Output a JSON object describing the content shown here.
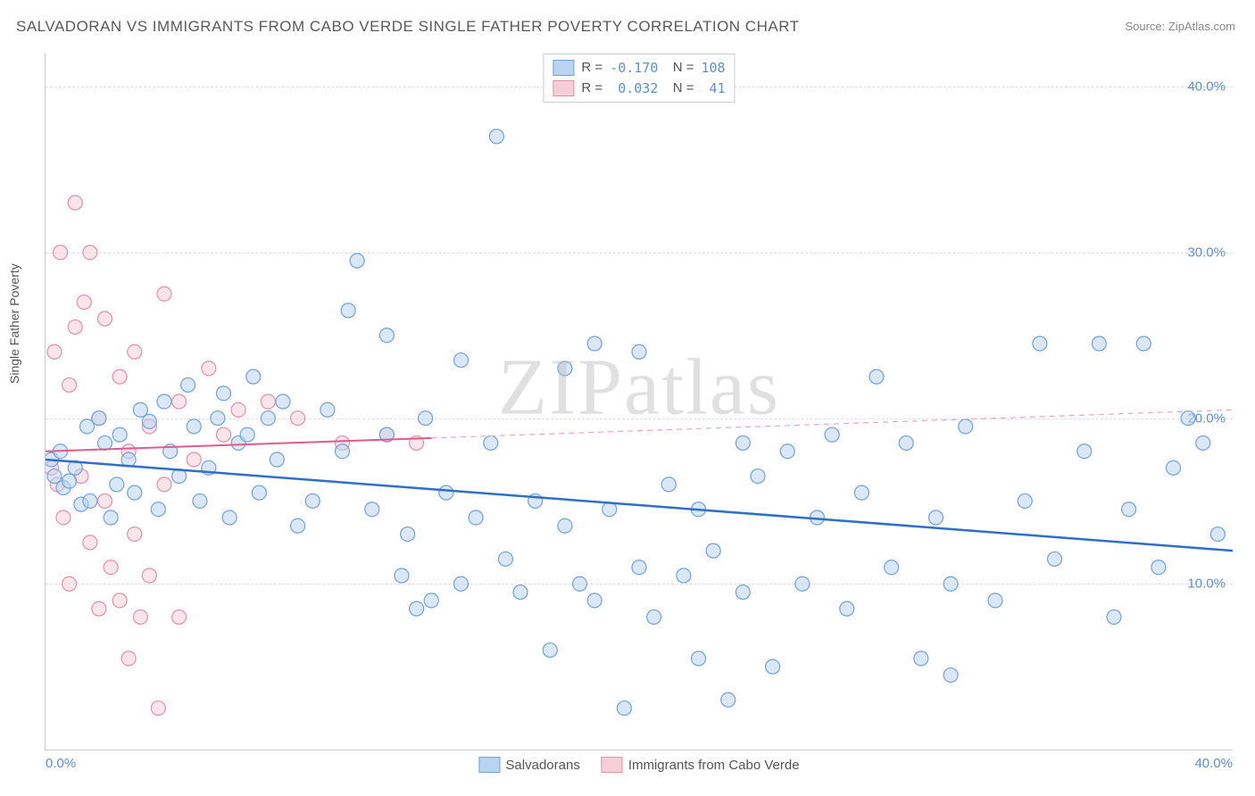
{
  "title": "SALVADORAN VS IMMIGRANTS FROM CABO VERDE SINGLE FATHER POVERTY CORRELATION CHART",
  "source": "Source: ZipAtlas.com",
  "ylabel": "Single Father Poverty",
  "watermark": "ZIPatlas",
  "chart": {
    "type": "scatter",
    "xlim": [
      0,
      40
    ],
    "ylim": [
      0,
      42
    ],
    "xticks": [
      {
        "v": 0,
        "l": "0.0%"
      },
      {
        "v": 40,
        "l": "40.0%"
      }
    ],
    "yticks": [
      {
        "v": 10,
        "l": "10.0%"
      },
      {
        "v": 20,
        "l": "20.0%"
      },
      {
        "v": 30,
        "l": "30.0%"
      },
      {
        "v": 40,
        "l": "40.0%"
      }
    ],
    "grid_color": "#dddddd",
    "background_color": "#ffffff",
    "marker_radius": 8,
    "marker_stroke_width": 1.2,
    "series": [
      {
        "name": "Salvadorans",
        "fill": "#b9d4f0",
        "stroke": "#6fa3dd",
        "fill_opacity": 0.55,
        "R": "-0.170",
        "N": "108",
        "trend": {
          "x1": 0,
          "y1": 17.5,
          "x2": 40,
          "y2": 12.0,
          "color": "#2e6fc9",
          "width": 2.5,
          "dash": "none"
        },
        "points": [
          [
            0.2,
            17.5
          ],
          [
            0.3,
            16.5
          ],
          [
            0.5,
            18.0
          ],
          [
            0.6,
            15.8
          ],
          [
            0.8,
            16.2
          ],
          [
            1.0,
            17.0
          ],
          [
            1.2,
            14.8
          ],
          [
            1.4,
            19.5
          ],
          [
            1.5,
            15.0
          ],
          [
            1.8,
            20.0
          ],
          [
            2.0,
            18.5
          ],
          [
            2.2,
            14.0
          ],
          [
            2.4,
            16.0
          ],
          [
            2.5,
            19.0
          ],
          [
            2.8,
            17.5
          ],
          [
            3.0,
            15.5
          ],
          [
            3.2,
            20.5
          ],
          [
            3.5,
            19.8
          ],
          [
            3.8,
            14.5
          ],
          [
            4.0,
            21.0
          ],
          [
            4.2,
            18.0
          ],
          [
            4.5,
            16.5
          ],
          [
            4.8,
            22.0
          ],
          [
            5.0,
            19.5
          ],
          [
            5.2,
            15.0
          ],
          [
            5.5,
            17.0
          ],
          [
            5.8,
            20.0
          ],
          [
            6.0,
            21.5
          ],
          [
            6.2,
            14.0
          ],
          [
            6.5,
            18.5
          ],
          [
            6.8,
            19.0
          ],
          [
            7.0,
            22.5
          ],
          [
            7.2,
            15.5
          ],
          [
            7.5,
            20.0
          ],
          [
            7.8,
            17.5
          ],
          [
            8.0,
            21.0
          ],
          [
            8.5,
            13.5
          ],
          [
            9.0,
            15.0
          ],
          [
            9.5,
            20.5
          ],
          [
            10.0,
            18.0
          ],
          [
            10.5,
            29.5
          ],
          [
            10.2,
            26.5
          ],
          [
            11.0,
            14.5
          ],
          [
            11.5,
            19.0
          ],
          [
            12.0,
            10.5
          ],
          [
            12.2,
            13.0
          ],
          [
            12.5,
            8.5
          ],
          [
            12.8,
            20.0
          ],
          [
            13.0,
            9.0
          ],
          [
            13.5,
            15.5
          ],
          [
            14.0,
            10.0
          ],
          [
            14.5,
            14.0
          ],
          [
            15.0,
            18.5
          ],
          [
            15.2,
            37.0
          ],
          [
            15.5,
            11.5
          ],
          [
            16.0,
            9.5
          ],
          [
            16.5,
            15.0
          ],
          [
            17.0,
            6.0
          ],
          [
            17.5,
            13.5
          ],
          [
            18.0,
            10.0
          ],
          [
            18.5,
            9.0
          ],
          [
            18.5,
            24.5
          ],
          [
            19.0,
            14.5
          ],
          [
            19.5,
            2.5
          ],
          [
            20.0,
            11.0
          ],
          [
            20.0,
            24.0
          ],
          [
            20.5,
            8.0
          ],
          [
            21.0,
            16.0
          ],
          [
            21.5,
            10.5
          ],
          [
            22.0,
            5.5
          ],
          [
            22.0,
            14.5
          ],
          [
            22.5,
            12.0
          ],
          [
            23.0,
            3.0
          ],
          [
            23.5,
            9.5
          ],
          [
            24.0,
            16.5
          ],
          [
            24.5,
            5.0
          ],
          [
            25.0,
            18.0
          ],
          [
            25.5,
            10.0
          ],
          [
            26.0,
            14.0
          ],
          [
            26.5,
            19.0
          ],
          [
            27.0,
            8.5
          ],
          [
            27.5,
            15.5
          ],
          [
            28.0,
            22.5
          ],
          [
            28.5,
            11.0
          ],
          [
            29.0,
            18.5
          ],
          [
            29.5,
            5.5
          ],
          [
            30.0,
            14.0
          ],
          [
            30.5,
            10.0
          ],
          [
            31.0,
            19.5
          ],
          [
            32.0,
            9.0
          ],
          [
            33.0,
            15.0
          ],
          [
            33.5,
            24.5
          ],
          [
            34.0,
            11.5
          ],
          [
            35.0,
            18.0
          ],
          [
            35.5,
            24.5
          ],
          [
            36.0,
            8.0
          ],
          [
            36.5,
            14.5
          ],
          [
            37.0,
            24.5
          ],
          [
            37.5,
            11.0
          ],
          [
            38.0,
            17.0
          ],
          [
            38.5,
            20.0
          ],
          [
            39.0,
            18.5
          ],
          [
            39.5,
            13.0
          ],
          [
            30.5,
            4.5
          ],
          [
            23.5,
            18.5
          ],
          [
            17.5,
            23.0
          ],
          [
            14.0,
            23.5
          ],
          [
            11.5,
            25.0
          ]
        ]
      },
      {
        "name": "Immigrants from Cabo Verde",
        "fill": "#f7cdd8",
        "stroke": "#e68fa8",
        "fill_opacity": 0.55,
        "R": "0.032",
        "N": "41",
        "trend_solid": {
          "x1": 0,
          "y1": 18.0,
          "x2": 13,
          "y2": 18.8,
          "color": "#e05a8a",
          "width": 2,
          "dash": "none"
        },
        "trend_dash": {
          "x1": 13,
          "y1": 18.8,
          "x2": 40,
          "y2": 20.5,
          "color": "#e9a7bb",
          "width": 1.2,
          "dash": "6,5"
        },
        "points": [
          [
            0.2,
            17.0
          ],
          [
            0.3,
            24.0
          ],
          [
            0.4,
            16.0
          ],
          [
            0.5,
            30.0
          ],
          [
            0.6,
            14.0
          ],
          [
            0.8,
            22.0
          ],
          [
            0.8,
            10.0
          ],
          [
            1.0,
            25.5
          ],
          [
            1.0,
            33.0
          ],
          [
            1.2,
            16.5
          ],
          [
            1.3,
            27.0
          ],
          [
            1.5,
            12.5
          ],
          [
            1.5,
            30.0
          ],
          [
            1.8,
            20.0
          ],
          [
            1.8,
            8.5
          ],
          [
            2.0,
            26.0
          ],
          [
            2.0,
            15.0
          ],
          [
            2.2,
            11.0
          ],
          [
            2.5,
            22.5
          ],
          [
            2.5,
            9.0
          ],
          [
            2.8,
            18.0
          ],
          [
            2.8,
            5.5
          ],
          [
            3.0,
            24.0
          ],
          [
            3.0,
            13.0
          ],
          [
            3.2,
            8.0
          ],
          [
            3.5,
            19.5
          ],
          [
            3.5,
            10.5
          ],
          [
            3.8,
            2.5
          ],
          [
            4.0,
            27.5
          ],
          [
            4.0,
            16.0
          ],
          [
            4.5,
            21.0
          ],
          [
            4.5,
            8.0
          ],
          [
            5.0,
            17.5
          ],
          [
            5.5,
            23.0
          ],
          [
            6.0,
            19.0
          ],
          [
            6.5,
            20.5
          ],
          [
            7.5,
            21.0
          ],
          [
            8.5,
            20.0
          ],
          [
            10.0,
            18.5
          ],
          [
            11.5,
            19.0
          ],
          [
            12.5,
            18.5
          ]
        ]
      }
    ]
  },
  "legend_bottom": [
    {
      "label": "Salvadorans",
      "fill": "#b9d4f0",
      "stroke": "#6fa3dd"
    },
    {
      "label": "Immigrants from Cabo Verde",
      "fill": "#f7cdd8",
      "stroke": "#e68fa8"
    }
  ]
}
